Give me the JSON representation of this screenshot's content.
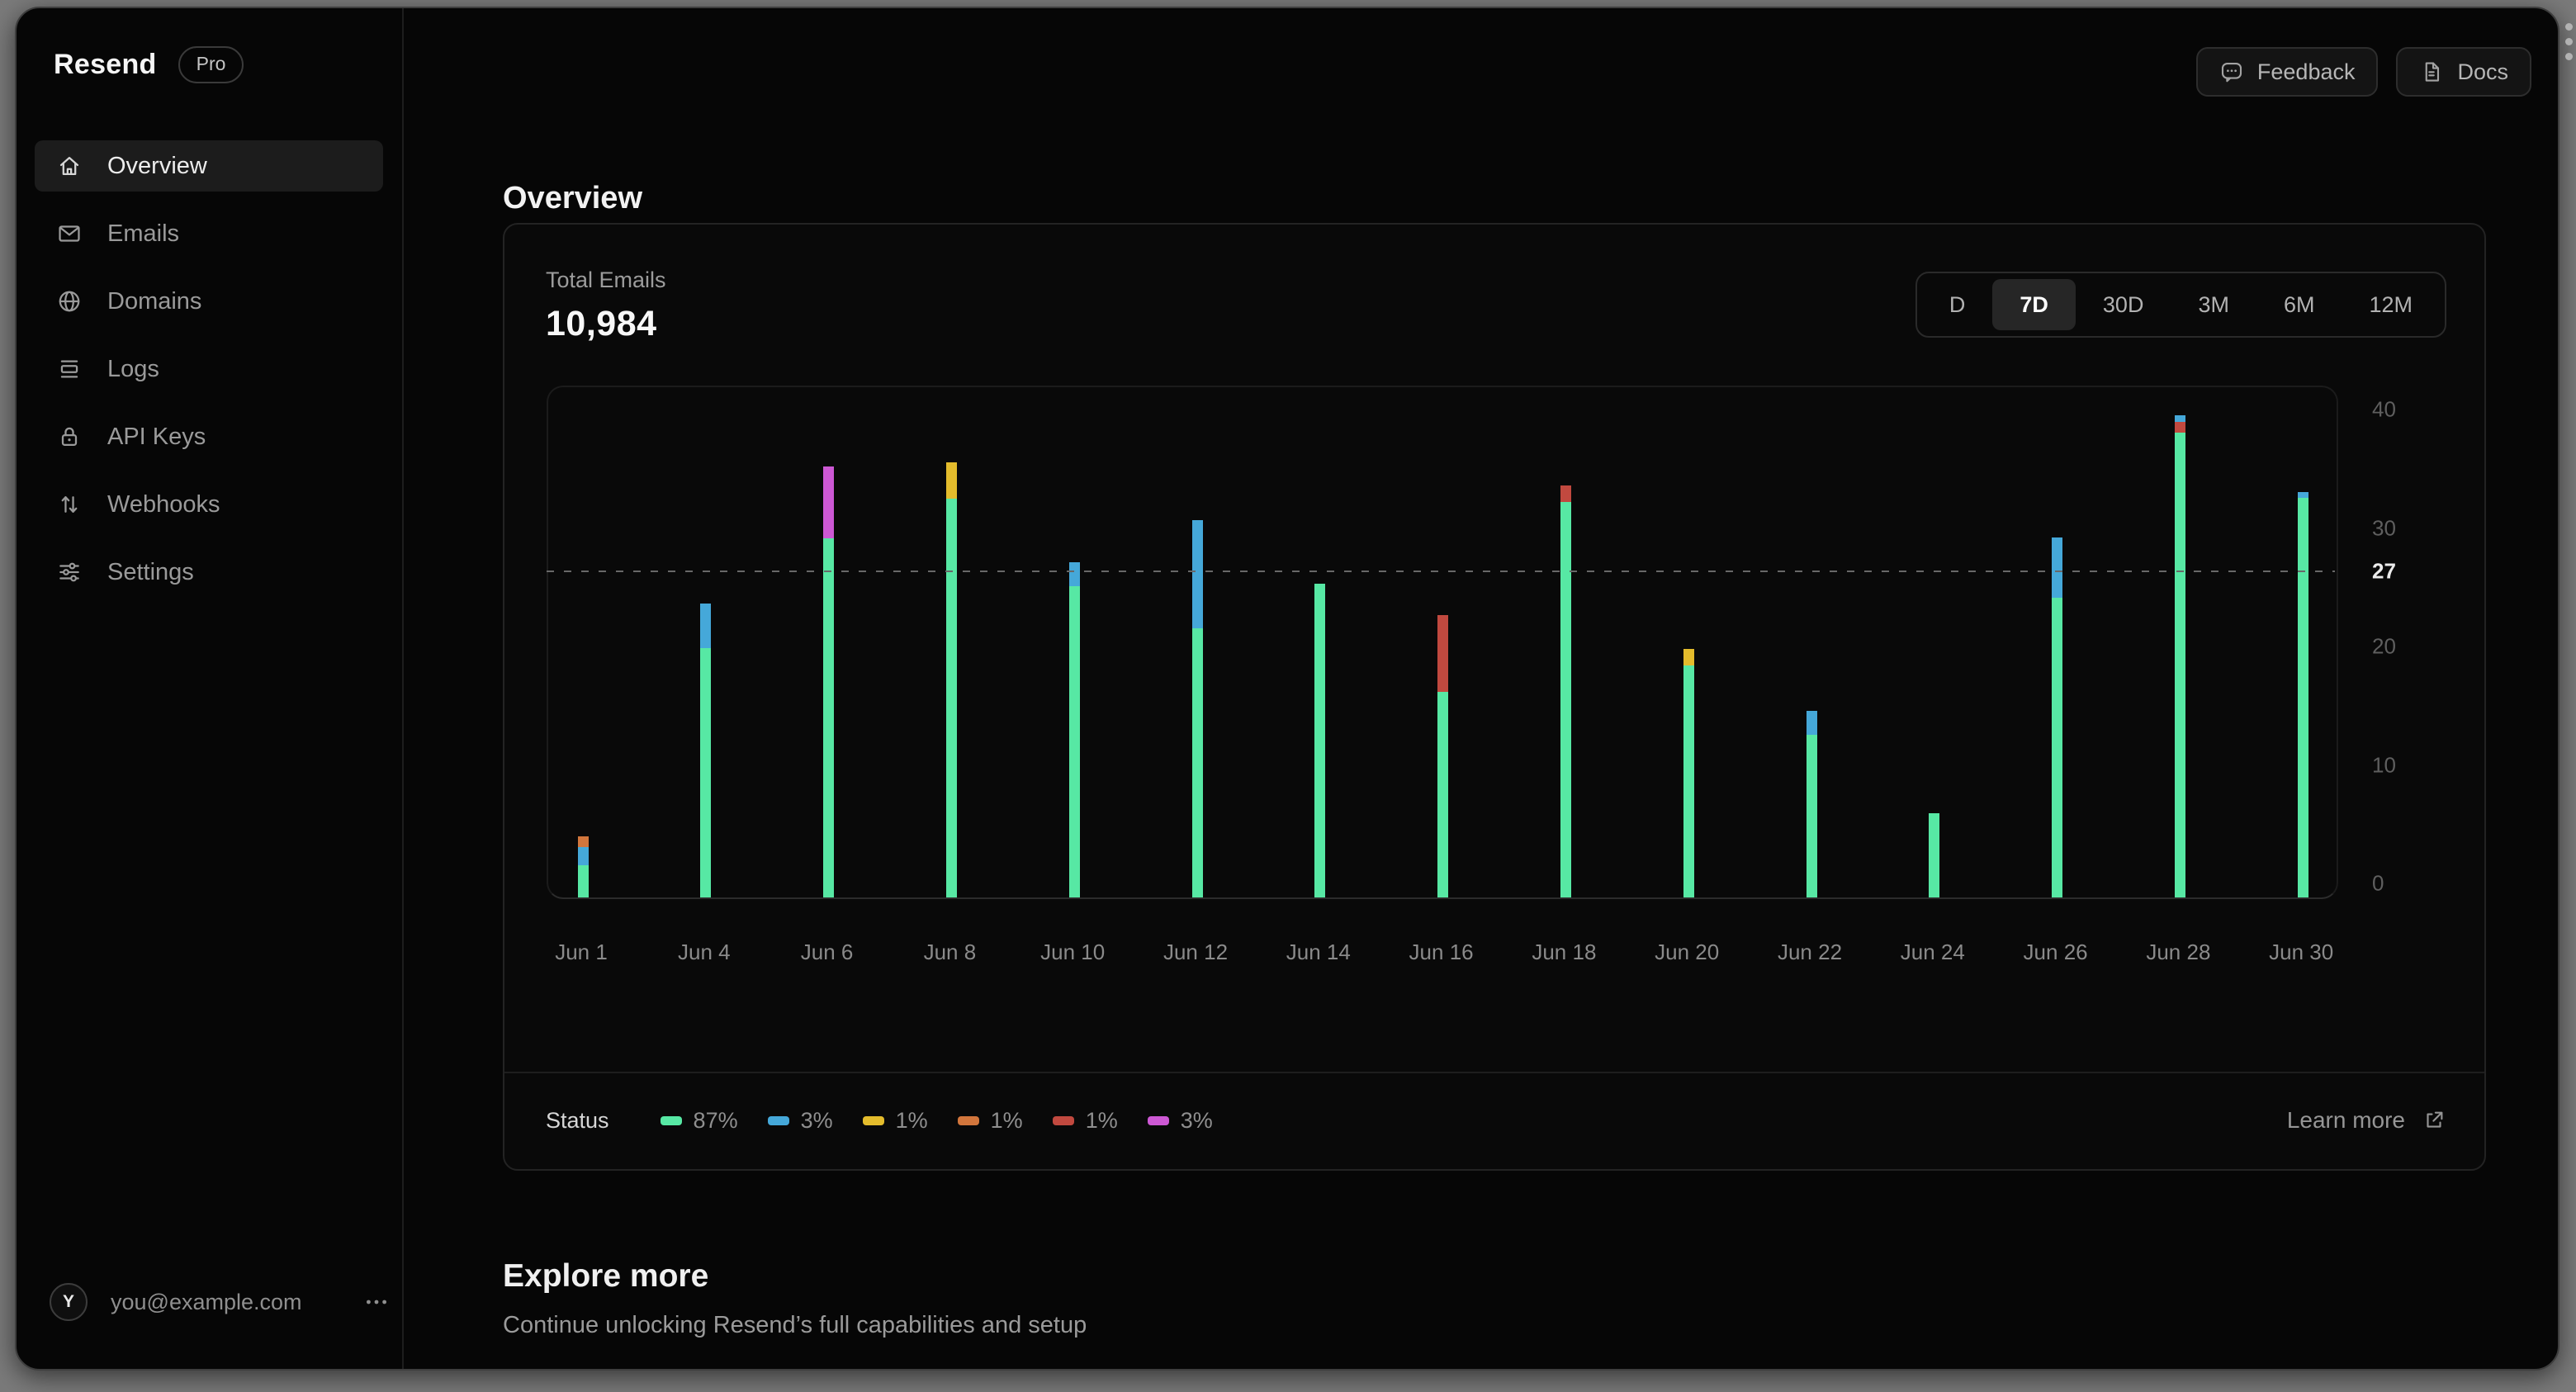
{
  "sidebar": {
    "logo": "Resend",
    "plan_badge": "Pro",
    "items": [
      {
        "label": "Overview",
        "icon": "home",
        "active": true
      },
      {
        "label": "Emails",
        "icon": "mail",
        "active": false
      },
      {
        "label": "Domains",
        "icon": "globe",
        "active": false
      },
      {
        "label": "Logs",
        "icon": "logs",
        "active": false
      },
      {
        "label": "API Keys",
        "icon": "lock",
        "active": false
      },
      {
        "label": "Webhooks",
        "icon": "arrows-up-down",
        "active": false
      },
      {
        "label": "Settings",
        "icon": "sliders",
        "active": false
      }
    ],
    "user": {
      "avatar_initial": "Y",
      "email": "you@example.com"
    }
  },
  "header": {
    "feedback_label": "Feedback",
    "docs_label": "Docs"
  },
  "page": {
    "title": "Overview"
  },
  "stats_card": {
    "metric_label": "Total Emails",
    "metric_value": "10,984",
    "range_options": [
      {
        "label": "D",
        "active": false
      },
      {
        "label": "7D",
        "active": true
      },
      {
        "label": "30D",
        "active": false
      },
      {
        "label": "3M",
        "active": false
      },
      {
        "label": "6M",
        "active": false
      },
      {
        "label": "12M",
        "active": false
      }
    ],
    "footer": {
      "status_label": "Status",
      "legend": [
        {
          "percent": "87%",
          "color_key": "green"
        },
        {
          "percent": "3%",
          "color_key": "blue"
        },
        {
          "percent": "1%",
          "color_key": "yellow"
        },
        {
          "percent": "1%",
          "color_key": "orange"
        },
        {
          "percent": "1%",
          "color_key": "red"
        },
        {
          "percent": "3%",
          "color_key": "magenta"
        }
      ],
      "learn_more_label": "Learn more"
    }
  },
  "chart_data": {
    "type": "bar",
    "title": "Total Emails",
    "stacked": true,
    "ylim": [
      0,
      40
    ],
    "yticks": [
      0,
      10,
      20,
      30,
      40
    ],
    "highlight_line": {
      "value": 27,
      "style": "dashed"
    },
    "grid": "off",
    "legend_position": "bottom",
    "palette": {
      "green": "#57e8a4",
      "blue": "#45a8d9",
      "yellow": "#e4bc2c",
      "orange": "#d2763c",
      "red": "#c1493f",
      "magenta": "#cd58d4"
    },
    "bars": [
      {
        "label": "Jun 1",
        "stack": [
          {
            "c": "green",
            "v": 2.7
          },
          {
            "c": "blue",
            "v": 1.5
          },
          {
            "c": "orange",
            "v": 0.9
          }
        ]
      },
      {
        "label": "Jun 4",
        "stack": [
          {
            "c": "green",
            "v": 20.8
          },
          {
            "c": "blue",
            "v": 3.7
          }
        ]
      },
      {
        "label": "Jun 6",
        "stack": [
          {
            "c": "green",
            "v": 30.0
          },
          {
            "c": "magenta",
            "v": 6.0
          }
        ]
      },
      {
        "label": "Jun 8",
        "stack": [
          {
            "c": "green",
            "v": 33.3
          },
          {
            "c": "yellow",
            "v": 3.0
          }
        ]
      },
      {
        "label": "Jun 10",
        "stack": [
          {
            "c": "green",
            "v": 26.0
          },
          {
            "c": "blue",
            "v": 2.0
          }
        ]
      },
      {
        "label": "Jun 12",
        "stack": [
          {
            "c": "green",
            "v": 22.5
          },
          {
            "c": "blue",
            "v": 9.0
          }
        ]
      },
      {
        "label": "Jun 14",
        "stack": [
          {
            "c": "green",
            "v": 26.2
          }
        ]
      },
      {
        "label": "Jun 16",
        "stack": [
          {
            "c": "green",
            "v": 17.2
          },
          {
            "c": "red",
            "v": 6.4
          }
        ]
      },
      {
        "label": "Jun 18",
        "stack": [
          {
            "c": "green",
            "v": 33.0
          },
          {
            "c": "red",
            "v": 1.4
          }
        ]
      },
      {
        "label": "Jun 20",
        "stack": [
          {
            "c": "green",
            "v": 19.4
          },
          {
            "c": "yellow",
            "v": 1.4
          }
        ]
      },
      {
        "label": "Jun 22",
        "stack": [
          {
            "c": "green",
            "v": 13.6
          },
          {
            "c": "blue",
            "v": 2.0
          }
        ]
      },
      {
        "label": "Jun 24",
        "stack": [
          {
            "c": "green",
            "v": 7.0
          }
        ]
      },
      {
        "label": "Jun 26",
        "stack": [
          {
            "c": "green",
            "v": 25.0
          },
          {
            "c": "blue",
            "v": 5.0
          }
        ]
      },
      {
        "label": "Jun 28",
        "stack": [
          {
            "c": "green",
            "v": 38.8
          },
          {
            "c": "red",
            "v": 0.9
          },
          {
            "c": "blue",
            "v": 0.55
          }
        ]
      },
      {
        "label": "Jun 30",
        "stack": [
          {
            "c": "green",
            "v": 33.4
          },
          {
            "c": "blue",
            "v": 0.5
          }
        ]
      }
    ]
  },
  "explore": {
    "title": "Explore more",
    "subtitle": "Continue unlocking Resend’s full capabilities and setup"
  }
}
